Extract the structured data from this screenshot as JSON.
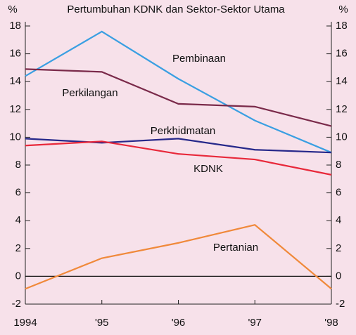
{
  "chart_data": {
    "type": "line",
    "title": "Pertumbuhan KDNK dan Sektor-Sektor Utama",
    "y_label": "%",
    "y2_label": "%",
    "categories": [
      "1994",
      "'95",
      "'96",
      "'97",
      "'98"
    ],
    "series": [
      {
        "name": "Pembinaan",
        "color": "#3a9fe2",
        "values": [
          14.4,
          17.6,
          14.2,
          11.2,
          8.9
        ]
      },
      {
        "name": "Perkilangan",
        "color": "#7a2a4a",
        "values": [
          14.9,
          14.7,
          12.4,
          12.2,
          10.8
        ]
      },
      {
        "name": "Perkhidmatan",
        "color": "#26288a",
        "values": [
          9.9,
          9.6,
          9.9,
          9.1,
          8.9
        ]
      },
      {
        "name": "KDNK",
        "color": "#e8283a",
        "values": [
          9.4,
          9.7,
          8.8,
          8.4,
          7.3
        ]
      },
      {
        "name": "Pertanian",
        "color": "#f0893a",
        "values": [
          -0.9,
          1.3,
          2.4,
          3.7,
          -0.9
        ]
      }
    ],
    "ylim": [
      -2,
      18
    ],
    "yticks": [
      -2,
      0,
      2,
      4,
      6,
      8,
      10,
      12,
      14,
      16,
      18
    ],
    "y2lim": [
      -2,
      18
    ],
    "y2ticks": [
      -2,
      0,
      2,
      4,
      6,
      8,
      10,
      12,
      14,
      16,
      18
    ],
    "zero_line": true
  }
}
